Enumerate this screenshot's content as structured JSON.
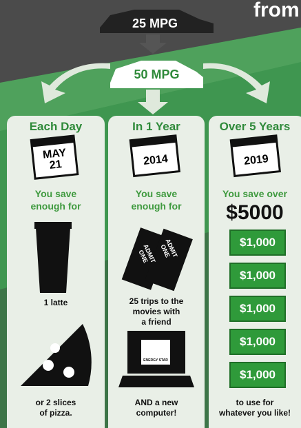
{
  "header": {
    "title_fragment": "from",
    "car_before": "25 MPG",
    "car_after": "50 MPG"
  },
  "columns": [
    {
      "heading": "Each Day",
      "calendar": {
        "month": "MAY",
        "day": "21"
      },
      "save_text": "You save\nenough for",
      "items": [
        "1 latte",
        "or 2 slices\nof pizza."
      ]
    },
    {
      "heading": "In 1 Year",
      "calendar": {
        "year": "2014"
      },
      "save_text": "You save\nenough for",
      "tickets": [
        "ADMIT ONE",
        "ADMIT ONE"
      ],
      "energy_label": "ENERGY STAR",
      "items": [
        "25 trips to the\nmovies with\na friend",
        "AND a new\ncomputer!"
      ]
    },
    {
      "heading": "Over 5 Years",
      "calendar": {
        "year": "2019"
      },
      "save_text": "You save over",
      "amount": "$5000",
      "bills": [
        "$1,000",
        "$1,000",
        "$1,000",
        "$1,000",
        "$1,000"
      ],
      "items": [
        "to use for\nwhatever you like!"
      ]
    }
  ]
}
